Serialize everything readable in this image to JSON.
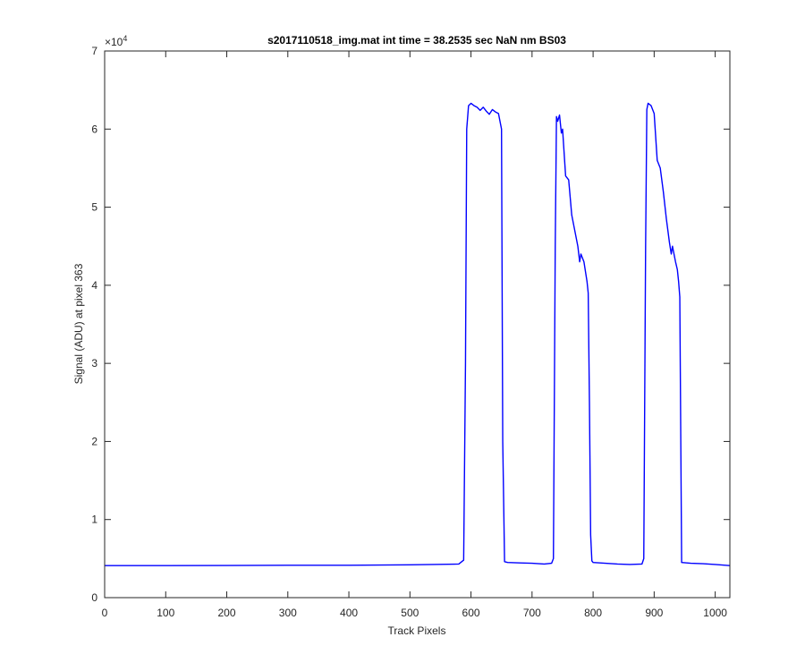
{
  "chart_data": {
    "type": "line",
    "title": "s2017110518_img.mat int time = 38.2535 sec  NaN nm BS03",
    "xlabel": "Track Pixels",
    "ylabel": "Signal (ADU) at pixel 363",
    "exponent_label": "×10",
    "exponent_power": "4",
    "xlim": [
      0,
      1024
    ],
    "ylim": [
      0,
      70000
    ],
    "xticks": [
      0,
      100,
      200,
      300,
      400,
      500,
      600,
      700,
      800,
      900,
      1000
    ],
    "xtick_labels": [
      "0",
      "100",
      "200",
      "300",
      "400",
      "500",
      "600",
      "700",
      "800",
      "900",
      "1000"
    ],
    "yticks": [
      0,
      10000,
      20000,
      30000,
      40000,
      50000,
      60000,
      70000
    ],
    "ytick_labels": [
      "0",
      "1",
      "2",
      "3",
      "4",
      "5",
      "6",
      "7"
    ],
    "grid": false,
    "line_color": "#0000ff",
    "series": [
      {
        "x": [
          0,
          100,
          200,
          300,
          400,
          500,
          580,
          588,
          591,
          593,
          596,
          600,
          605,
          610,
          615,
          620,
          625,
          630,
          635,
          640,
          645,
          650,
          652,
          655,
          660,
          680,
          700,
          720,
          732,
          735,
          738,
          740,
          742,
          745,
          748,
          750,
          755,
          760,
          765,
          770,
          775,
          778,
          780,
          785,
          788,
          790,
          792,
          794,
          796,
          798,
          800,
          820,
          840,
          860,
          880,
          883,
          886,
          888,
          890,
          895,
          900,
          905,
          910,
          915,
          920,
          925,
          928,
          930,
          935,
          938,
          940,
          942,
          945,
          960,
          980,
          1000,
          1024
        ],
        "y": [
          4100,
          4100,
          4120,
          4140,
          4150,
          4200,
          4300,
          4800,
          30000,
          60000,
          63000,
          63300,
          63000,
          62800,
          62400,
          62800,
          62300,
          61900,
          62500,
          62200,
          62000,
          60000,
          20000,
          4600,
          4500,
          4450,
          4400,
          4300,
          4400,
          5000,
          45000,
          61600,
          61000,
          61800,
          59500,
          60000,
          54000,
          53500,
          49000,
          47000,
          45000,
          43000,
          44000,
          43000,
          41500,
          40500,
          39000,
          25000,
          8000,
          4700,
          4500,
          4400,
          4300,
          4250,
          4300,
          5000,
          45000,
          62500,
          63300,
          63000,
          62000,
          56000,
          55000,
          52000,
          48500,
          45500,
          44000,
          45000,
          43000,
          42000,
          40500,
          38500,
          4500,
          4400,
          4350,
          4250,
          4100
        ]
      }
    ]
  }
}
